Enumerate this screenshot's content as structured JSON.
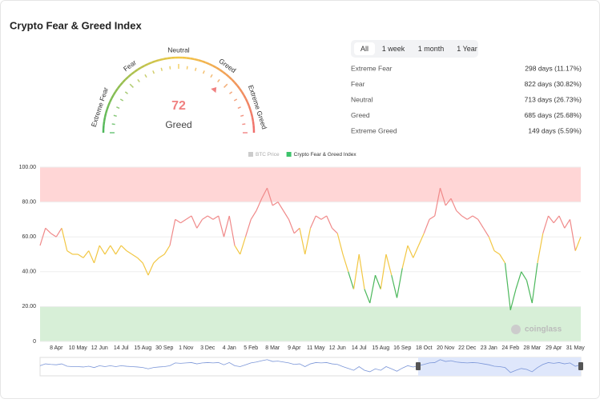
{
  "title": "Crypto Fear & Greed Index",
  "gauge": {
    "value": 72,
    "label": "Greed",
    "range": [
      0,
      100
    ],
    "zones": [
      "Extreme Fear",
      "Fear",
      "Neutral",
      "Greed",
      "Extreme Greed"
    ],
    "value_color": "#f08080"
  },
  "tabs": [
    "All",
    "1 week",
    "1 month",
    "1 Year"
  ],
  "stats": [
    {
      "label": "Extreme Fear",
      "value": "298 days (11.17%)"
    },
    {
      "label": "Fear",
      "value": "822 days (30.82%)"
    },
    {
      "label": "Neutral",
      "value": "713 days (26.73%)"
    },
    {
      "label": "Greed",
      "value": "685 days (25.68%)"
    },
    {
      "label": "Extreme Greed",
      "value": "149 days (5.59%)"
    }
  ],
  "chart_data": {
    "type": "line",
    "watermark": "coinglass",
    "ylim": [
      0,
      100
    ],
    "yticks": [
      0,
      {
        "value": 20,
        "label": "20.00"
      },
      {
        "value": 40,
        "label": "40.00"
      },
      {
        "value": 60,
        "label": "60.00"
      },
      {
        "value": 80,
        "label": "80.00"
      },
      {
        "value": 100,
        "label": "100.00"
      }
    ],
    "bands": [
      {
        "from": 80,
        "to": 100,
        "color": "#ffd6d6"
      },
      {
        "from": 0,
        "to": 20,
        "color": "#d7efd7"
      }
    ],
    "legend": [
      {
        "name": "BTC Price",
        "color": "#cccccc"
      },
      {
        "name": "Crypto Fear & Greed Index",
        "color": "#3cc36b"
      }
    ],
    "line_colors": [
      {
        "min": 60,
        "color": "#f08a8a"
      },
      {
        "min": 40,
        "color": "#f2c744"
      },
      {
        "min": 0,
        "color": "#4cb85c"
      }
    ],
    "categories": [
      null,
      null,
      null,
      "8 Apr",
      null,
      null,
      null,
      "10 May",
      null,
      null,
      null,
      "12 Jun",
      null,
      null,
      null,
      "14 Jul",
      null,
      null,
      null,
      "15 Aug",
      null,
      null,
      null,
      "30 Sep",
      null,
      null,
      null,
      "1 Nov",
      null,
      null,
      null,
      "3 Dec",
      null,
      null,
      null,
      "4 Jan",
      null,
      null,
      null,
      "5 Feb",
      null,
      null,
      null,
      "8 Mar",
      null,
      null,
      null,
      "9 Apr",
      null,
      null,
      null,
      "11 May",
      null,
      null,
      null,
      "12 Jun",
      null,
      null,
      null,
      "14 Jul",
      null,
      null,
      null,
      "15 Aug",
      null,
      null,
      null,
      "16 Sep",
      null,
      null,
      null,
      "18 Oct",
      null,
      null,
      null,
      "20 Nov",
      null,
      null,
      null,
      "22 Dec",
      null,
      null,
      null,
      "23 Jan",
      null,
      null,
      null,
      "24 Feb",
      null,
      null,
      null,
      "28 Mar",
      null,
      null,
      null,
      "29 Apr",
      null,
      null,
      null,
      "31 May",
      null
    ],
    "values": [
      55,
      65,
      62,
      60,
      65,
      52,
      50,
      50,
      48,
      52,
      45,
      55,
      50,
      55,
      50,
      55,
      52,
      50,
      48,
      45,
      38,
      45,
      48,
      50,
      55,
      70,
      68,
      70,
      72,
      65,
      70,
      72,
      70,
      72,
      60,
      72,
      55,
      50,
      60,
      70,
      75,
      82,
      88,
      78,
      80,
      75,
      70,
      62,
      65,
      50,
      65,
      72,
      70,
      72,
      65,
      62,
      50,
      40,
      30,
      50,
      30,
      22,
      38,
      30,
      50,
      38,
      25,
      42,
      55,
      48,
      55,
      62,
      70,
      72,
      88,
      78,
      82,
      75,
      72,
      70,
      72,
      70,
      65,
      60,
      52,
      50,
      45,
      18,
      30,
      40,
      35,
      22,
      45,
      62,
      72,
      68,
      72,
      65,
      70,
      52,
      60
    ]
  }
}
